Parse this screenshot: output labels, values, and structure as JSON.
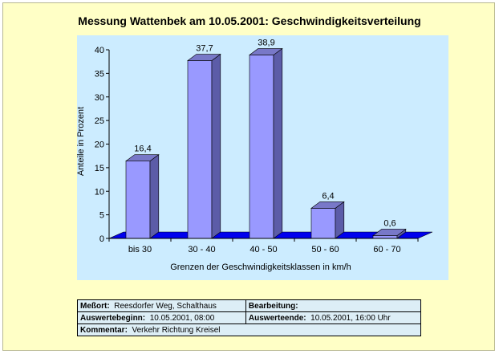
{
  "chart_data": {
    "type": "bar",
    "title": "Messung Wattenbek am 10.05.2001: Geschwindigkeitsverteilung",
    "categories": [
      "bis 30",
      "30 - 40",
      "40 - 50",
      "50 - 60",
      "60 - 70"
    ],
    "values": [
      16.4,
      37.7,
      38.9,
      6.4,
      0.6
    ],
    "data_labels": [
      "16,4",
      "37,7",
      "38,9",
      "6,4",
      "0,6"
    ],
    "xlabel": "Grenzen der Geschwindigkeitsklassen in km/h",
    "ylabel": "Anteile in Prozent",
    "ylim": [
      0,
      40
    ],
    "yticks": [
      0,
      5,
      10,
      15,
      20,
      25,
      30,
      35,
      40
    ],
    "grid": false,
    "legend": "none",
    "colors": {
      "bar_front": "#9999ff",
      "bar_side": "#5c5ca8",
      "bar_top": "#7878c8",
      "floor": "#0000ee",
      "plot_bg": "#ccecff",
      "page_bg": "#ffffc6"
    }
  },
  "info": {
    "messort_label": "Meßort:",
    "messort_value": "Reesdorfer Weg, Schalthaus",
    "bearbeitung_label": "Bearbeitung:",
    "bearbeitung_value": "",
    "auswertebeginn_label": "Auswertebeginn:",
    "auswertebeginn_value": "10.05.2001, 08:00",
    "auswerteende_label": "Auswerteende:",
    "auswerteende_value": "10.05.2001, 16:00 Uhr",
    "kommentar_label": "Kommentar:",
    "kommentar_value": "Verkehr Richtung Kreisel"
  }
}
